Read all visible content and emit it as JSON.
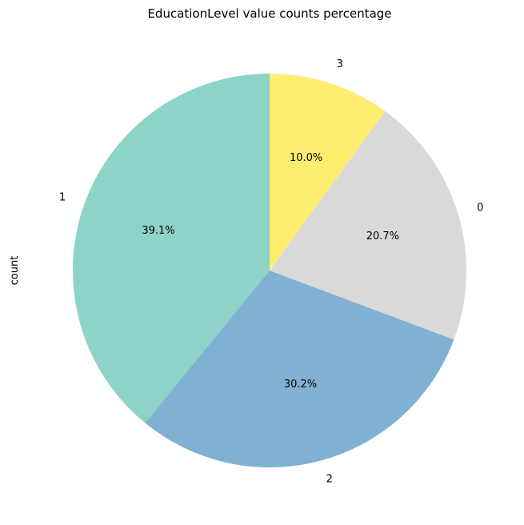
{
  "chart_data": {
    "type": "pie",
    "title": "EducationLevel value counts percentage",
    "ylabel": "count",
    "start_angle_deg": 90,
    "direction": "counterclockwise",
    "slices": [
      {
        "label": "1",
        "value": 39.1,
        "pct_label": "39.1%",
        "color": "#8dd3c7"
      },
      {
        "label": "2",
        "value": 30.2,
        "pct_label": "30.2%",
        "color": "#80b1d3"
      },
      {
        "label": "0",
        "value": 20.7,
        "pct_label": "20.7%",
        "color": "#d9d9d9"
      },
      {
        "label": "3",
        "value": 10.0,
        "pct_label": "10.0%",
        "color": "#ffed6f"
      }
    ]
  }
}
